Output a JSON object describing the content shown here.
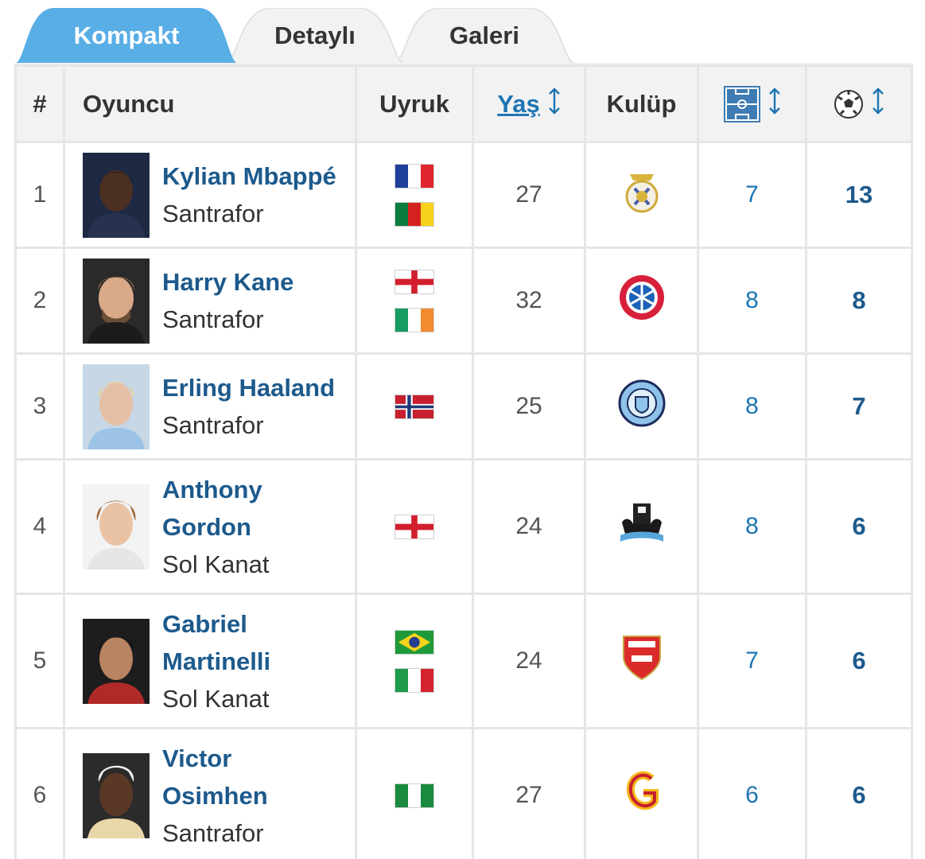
{
  "tabs": [
    {
      "label": "Kompakt",
      "active": true
    },
    {
      "label": "Detaylı",
      "active": false
    },
    {
      "label": "Galeri",
      "active": false
    }
  ],
  "colors": {
    "active_tab": "#5aaee6",
    "link": "#1d75b3",
    "player_name": "#1d5a8c",
    "header_bg": "#f2f2f2",
    "grid": "#e6e6e6"
  },
  "table": {
    "headers": {
      "num": "#",
      "player": "Oyuncu",
      "nationality": "Uyruk",
      "age": "Yaş",
      "age_sort_icon": "sort-arrows-icon",
      "club": "Kulüp",
      "appearances_icon": "pitch-icon",
      "goals_icon": "football-icon"
    },
    "rows": [
      {
        "rank": "1",
        "name_lines": [
          "Kylian Mbappé"
        ],
        "position": "Santrafor",
        "flags": [
          "france",
          "cameroon"
        ],
        "age": "27",
        "club_icon": "real-madrid-crest-icon",
        "appearances": "7",
        "goals": "13"
      },
      {
        "rank": "2",
        "name_lines": [
          "Harry Kane"
        ],
        "position": "Santrafor",
        "flags": [
          "england",
          "ireland"
        ],
        "age": "32",
        "club_icon": "bayern-munich-crest-icon",
        "appearances": "8",
        "goals": "8"
      },
      {
        "rank": "3",
        "name_lines": [
          "Erling Haaland"
        ],
        "position": "Santrafor",
        "flags": [
          "norway"
        ],
        "age": "25",
        "club_icon": "manchester-city-crest-icon",
        "appearances": "8",
        "goals": "7"
      },
      {
        "rank": "4",
        "name_lines": [
          "Anthony",
          "Gordon"
        ],
        "position": "Sol Kanat",
        "flags": [
          "england"
        ],
        "age": "24",
        "club_icon": "newcastle-crest-icon",
        "appearances": "8",
        "goals": "6"
      },
      {
        "rank": "5",
        "name_lines": [
          "Gabriel",
          "Martinelli"
        ],
        "position": "Sol Kanat",
        "flags": [
          "brazil",
          "italy"
        ],
        "age": "24",
        "club_icon": "arsenal-crest-icon",
        "appearances": "7",
        "goals": "6"
      },
      {
        "rank": "6",
        "name_lines": [
          "Victor",
          "Osimhen"
        ],
        "position": "Santrafor",
        "flags": [
          "nigeria"
        ],
        "age": "27",
        "club_icon": "galatasaray-crest-icon",
        "appearances": "6",
        "goals": "6"
      }
    ]
  }
}
